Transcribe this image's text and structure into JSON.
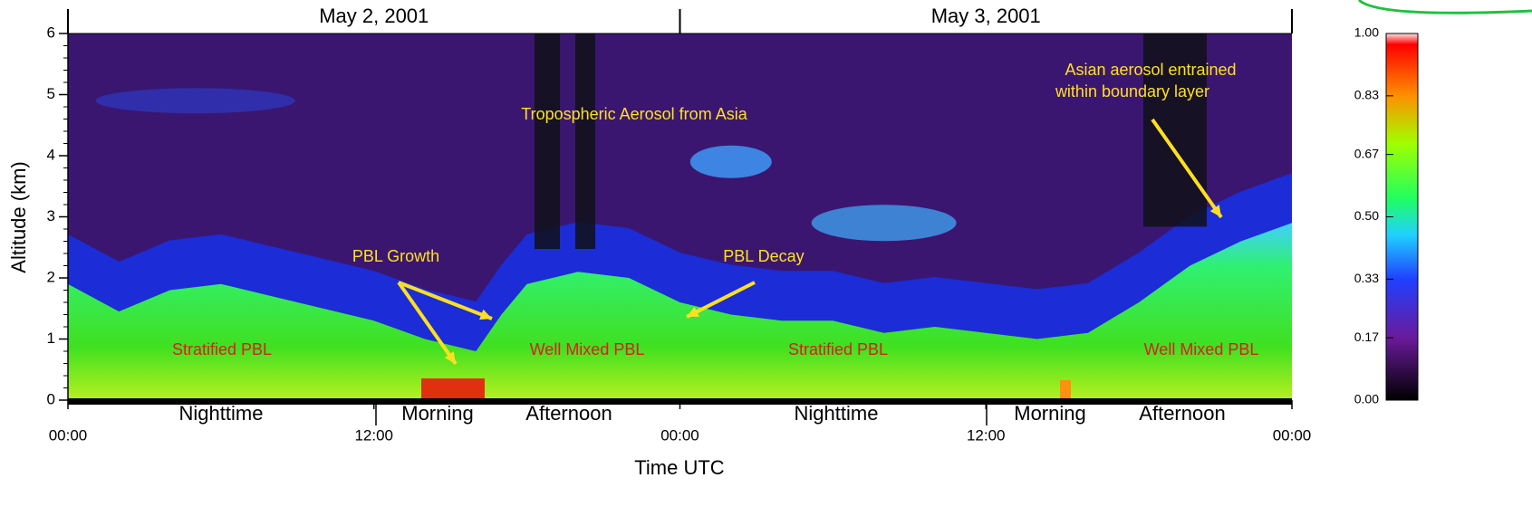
{
  "chart_data": {
    "type": "area",
    "xlabel": "Time UTC",
    "ylabel": "Altitude (km)",
    "xlim": [
      0,
      48
    ],
    "xticks": [
      {
        "value": 0,
        "label": "00:00"
      },
      {
        "value": 12,
        "label": "12:00"
      },
      {
        "value": 24,
        "label": "00:00"
      },
      {
        "value": 36,
        "label": "12:00"
      },
      {
        "value": 48,
        "label": "00:00"
      }
    ],
    "ylim": [
      0,
      6
    ],
    "yticks": [
      0,
      1,
      2,
      3,
      4,
      5,
      6
    ],
    "dates": [
      "May 2, 2001",
      "May 3, 2001"
    ],
    "periods": [
      "Nighttime",
      "Morning",
      "Afternoon",
      "Nighttime",
      "Morning",
      "Afternoon"
    ],
    "x": [
      0,
      2,
      4,
      6,
      8,
      10,
      12,
      14,
      16,
      17,
      18,
      20,
      22,
      24,
      26,
      28,
      30,
      32,
      34,
      36,
      38,
      40,
      42,
      44,
      46,
      48
    ],
    "values": [
      1.9,
      1.45,
      1.8,
      1.9,
      1.7,
      1.5,
      1.3,
      1.0,
      0.8,
      1.4,
      1.9,
      2.1,
      2.0,
      1.6,
      1.4,
      1.3,
      1.3,
      1.1,
      1.2,
      1.1,
      1.0,
      1.1,
      1.6,
      2.2,
      2.6,
      2.9
    ],
    "color": "#33e633",
    "annotations": [
      {
        "text": "Tropospheric Aerosol from Asia",
        "color": "#ffe020"
      },
      {
        "text": "Asian aerosol entrained",
        "color": "#ffe020"
      },
      {
        "text": "within boundary layer",
        "color": "#ffe020"
      },
      {
        "text": "PBL Growth",
        "color": "#ffe020"
      },
      {
        "text": "PBL Decay",
        "color": "#ffe020"
      },
      {
        "text": "Stratified PBL",
        "color": "#d62020"
      },
      {
        "text": "Well Mixed PBL",
        "color": "#d62020"
      },
      {
        "text": "Stratified PBL",
        "color": "#d62020"
      },
      {
        "text": "Well Mixed PBL",
        "color": "#d62020"
      }
    ],
    "colorbar": {
      "lim": [
        0,
        1
      ],
      "ticks": [
        {
          "value": 0,
          "label": "0.00"
        },
        0.17,
        0.33,
        {
          "value": 0.5,
          "label": "0.50"
        },
        0.67,
        0.83,
        {
          "value": 1,
          "label": "1.00"
        }
      ]
    }
  }
}
